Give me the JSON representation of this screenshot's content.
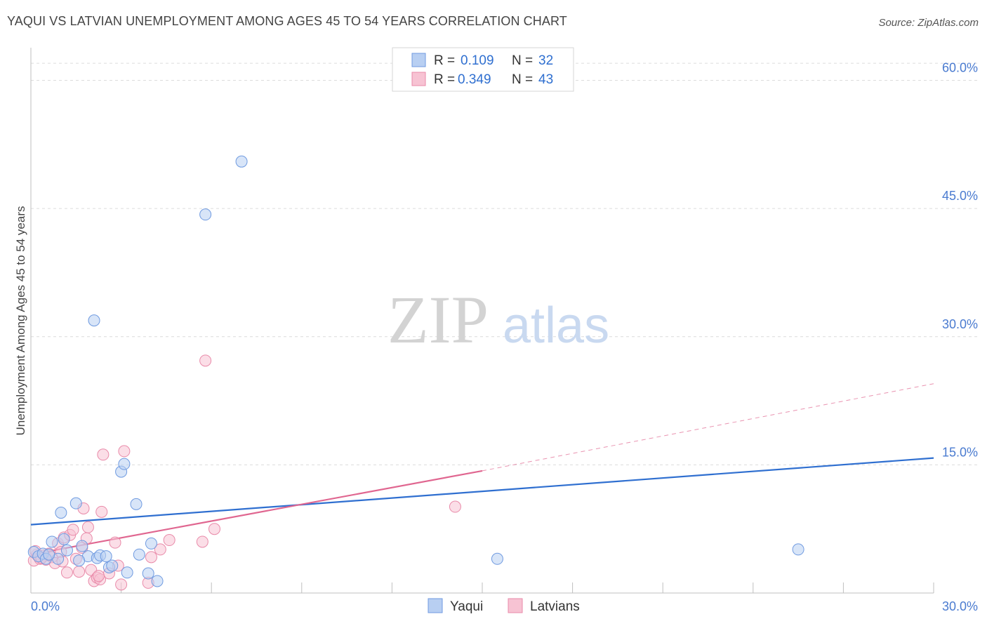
{
  "header": {
    "title": "YAQUI VS LATVIAN UNEMPLOYMENT AMONG AGES 45 TO 54 YEARS CORRELATION CHART",
    "source": "Source: ZipAtlas.com"
  },
  "watermark": {
    "zip": "ZIP",
    "atlas": "atlas"
  },
  "legend": {
    "r_label": "R =",
    "n_label": "N =",
    "rows": [
      {
        "r": "0.109",
        "n": "32"
      },
      {
        "r": "0.349",
        "n": "43"
      }
    ]
  },
  "colors": {
    "yaqui_fill": "#b8cff2",
    "yaqui_stroke": "#6f9ae0",
    "yaqui_line": "#2f6fd0",
    "latvians_fill": "#f7c3d3",
    "latvians_stroke": "#e98aa9",
    "latvians_line": "#e06690"
  },
  "chart_data": {
    "type": "scatter",
    "title": "YAQUI VS LATVIAN UNEMPLOYMENT AMONG AGES 45 TO 54 YEARS CORRELATION CHART",
    "xlabel": "",
    "ylabel": "Unemployment Among Ages 45 to 54 years",
    "xlim": [
      0,
      30
    ],
    "ylim": [
      0,
      63
    ],
    "x_tick_labels": [
      {
        "value": 0,
        "label": "0.0%"
      },
      {
        "value": 30,
        "label": "30.0%"
      }
    ],
    "y_tick_labels": [
      {
        "value": 15,
        "label": "15.0%"
      },
      {
        "value": 30,
        "label": "30.0%"
      },
      {
        "value": 45,
        "label": "45.0%"
      },
      {
        "value": 60,
        "label": "60.0%"
      }
    ],
    "series": [
      {
        "name": "Yaqui",
        "r": 0.109,
        "n": 32,
        "points": [
          [
            0.1,
            4.8
          ],
          [
            0.25,
            4.3
          ],
          [
            0.4,
            4.6
          ],
          [
            0.5,
            4.0
          ],
          [
            0.7,
            6.0
          ],
          [
            0.9,
            4.0
          ],
          [
            1.1,
            6.3
          ],
          [
            1.2,
            5.0
          ],
          [
            1.0,
            9.4
          ],
          [
            1.5,
            10.5
          ],
          [
            1.7,
            5.5
          ],
          [
            1.9,
            4.3
          ],
          [
            2.1,
            31.9
          ],
          [
            2.2,
            4.1
          ],
          [
            2.3,
            4.4
          ],
          [
            2.5,
            4.3
          ],
          [
            2.6,
            3.0
          ],
          [
            3.0,
            14.2
          ],
          [
            3.1,
            15.1
          ],
          [
            3.2,
            2.4
          ],
          [
            3.5,
            10.4
          ],
          [
            3.6,
            4.5
          ],
          [
            3.9,
            2.3
          ],
          [
            4.0,
            5.8
          ],
          [
            4.2,
            1.4
          ],
          [
            5.8,
            44.3
          ],
          [
            7.0,
            50.5
          ],
          [
            15.5,
            4.0
          ],
          [
            25.5,
            5.1
          ],
          [
            0.6,
            4.5
          ],
          [
            1.6,
            3.8
          ],
          [
            2.7,
            3.2
          ]
        ],
        "trend": {
          "x0": 0,
          "y0": 8.0,
          "x1": 30,
          "y1": 15.8
        }
      },
      {
        "name": "Latvians",
        "r": 0.349,
        "n": 43,
        "points": [
          [
            0.1,
            3.8
          ],
          [
            0.2,
            4.5
          ],
          [
            0.3,
            4.0
          ],
          [
            0.45,
            4.4
          ],
          [
            0.5,
            3.9
          ],
          [
            0.6,
            4.6
          ],
          [
            0.7,
            4.2
          ],
          [
            0.8,
            3.5
          ],
          [
            0.9,
            5.8
          ],
          [
            1.0,
            4.8
          ],
          [
            1.1,
            6.5
          ],
          [
            1.2,
            2.4
          ],
          [
            1.3,
            6.8
          ],
          [
            1.4,
            7.4
          ],
          [
            1.5,
            4.0
          ],
          [
            1.6,
            2.5
          ],
          [
            1.7,
            5.3
          ],
          [
            1.75,
            9.9
          ],
          [
            1.85,
            6.4
          ],
          [
            1.9,
            7.7
          ],
          [
            2.0,
            2.7
          ],
          [
            2.1,
            1.4
          ],
          [
            2.2,
            1.8
          ],
          [
            2.3,
            1.6
          ],
          [
            2.35,
            9.5
          ],
          [
            2.4,
            16.2
          ],
          [
            2.6,
            2.3
          ],
          [
            2.8,
            5.9
          ],
          [
            2.9,
            3.2
          ],
          [
            3.0,
            1.0
          ],
          [
            3.1,
            16.6
          ],
          [
            3.9,
            1.2
          ],
          [
            4.0,
            4.2
          ],
          [
            4.3,
            5.1
          ],
          [
            4.6,
            6.2
          ],
          [
            5.7,
            6.0
          ],
          [
            5.8,
            27.2
          ],
          [
            6.1,
            7.5
          ],
          [
            14.1,
            10.1
          ],
          [
            0.35,
            4.1
          ],
          [
            1.05,
            3.7
          ],
          [
            2.25,
            2.0
          ],
          [
            0.15,
            4.9
          ]
        ],
        "trend": {
          "x0": 0,
          "y0": 4.5,
          "x1": 15,
          "y1": 14.3
        },
        "trend_extension": {
          "x0": 15,
          "y0": 14.3,
          "x1": 30,
          "y1": 24.5
        }
      }
    ],
    "grid": true,
    "legend_position": "top-center",
    "bottom_legend": [
      "Yaqui",
      "Latvians"
    ]
  }
}
